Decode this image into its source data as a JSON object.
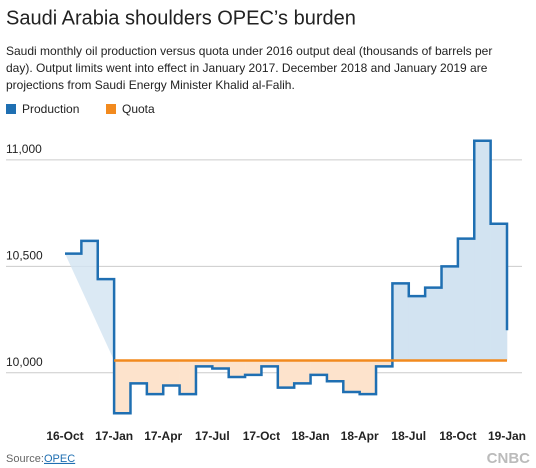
{
  "chart_data": {
    "type": "step",
    "title": "Saudi Arabia shoulders OPEC’s burden",
    "subtitle": [
      "Saudi monthly oil production versus quota under 2016 output deal (thousands of barrels per",
      "day). Output limits went into effect in January 2017. December 2018 and January 2019 are",
      "projections from Saudi Energy Minister Khalid al-Falih."
    ],
    "categories": [
      "16-Oct",
      null,
      null,
      "17-Jan",
      null,
      null,
      "17-Apr",
      null,
      null,
      "17-Jul",
      null,
      null,
      "17-Oct",
      null,
      null,
      "18-Jan",
      null,
      null,
      "18-Apr",
      null,
      null,
      "18-Jul",
      null,
      null,
      "18-Oct",
      null,
      null,
      "19-Jan"
    ],
    "series": [
      {
        "name": "Production",
        "color": "#1f6fb2",
        "fill": "#d2e3f1",
        "values": [
          10560,
          10620,
          10440,
          9810,
          9950,
          9900,
          9940,
          9900,
          10030,
          10020,
          9980,
          9990,
          10030,
          9930,
          9950,
          9990,
          9960,
          9910,
          9900,
          10030,
          10420,
          10360,
          10400,
          10500,
          10630,
          11090,
          10700,
          10200
        ]
      },
      {
        "name": "Quota",
        "color": "#f28a1e",
        "fill": "#fde3cc",
        "values": [
          null,
          null,
          null,
          10058,
          10058,
          10058,
          10058,
          10058,
          10058,
          10058,
          10058,
          10058,
          10058,
          10058,
          10058,
          10058,
          10058,
          10058,
          10058,
          10058,
          10058,
          10058,
          10058,
          10058,
          10058,
          10058,
          10058,
          10058
        ]
      }
    ],
    "ylim": [
      9750,
      11150
    ],
    "yticks": [
      {
        "value": 10000,
        "label": "10,000"
      },
      {
        "value": 10500,
        "label": "10,500"
      },
      {
        "value": 11000,
        "label": "11,000"
      }
    ],
    "grid": true,
    "source_label": "Source:",
    "source": "OPEC",
    "logo": "CNBC"
  }
}
